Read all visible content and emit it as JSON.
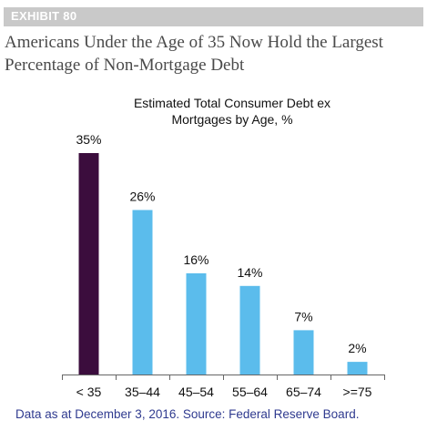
{
  "exhibit": "EXHIBIT 80",
  "headline": [
    "Americans Under the Age of 35 Now Hold the Largest",
    "Percentage of Non-Mortgage Debt"
  ],
  "footnote": "Data as at December 3, 2016. Source: Federal Reserve Board.",
  "colors": {
    "highlight": "#3b0d3d",
    "bar": "#5bbcec",
    "axis": "#666666"
  },
  "chart_data": {
    "type": "bar",
    "title": [
      "Estimated Total Consumer Debt ex",
      "Mortgages by Age, %"
    ],
    "categories": [
      "< 35",
      "35–44",
      "45–54",
      "55–64",
      "65–74",
      ">=75"
    ],
    "values": [
      35,
      26,
      16,
      14,
      7,
      2
    ],
    "data_labels": [
      "35%",
      "26%",
      "16%",
      "14%",
      "7%",
      "2%"
    ],
    "highlight_index": 0,
    "ylim": [
      0,
      35
    ],
    "grid": false,
    "legend": "none"
  }
}
